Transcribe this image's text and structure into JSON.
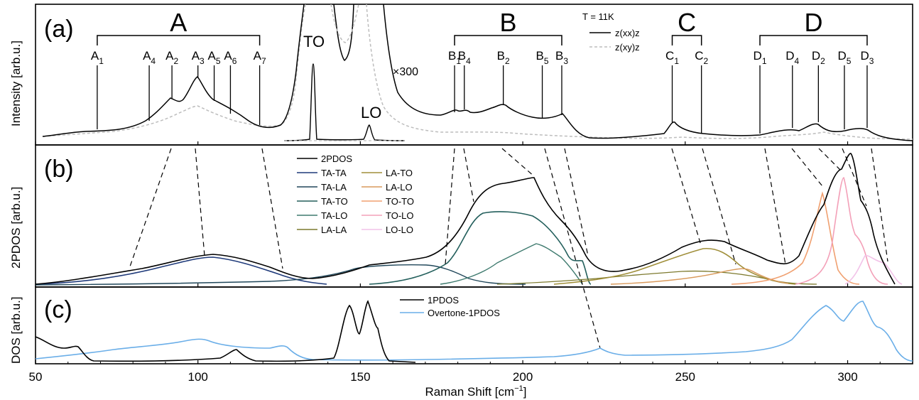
{
  "figure": {
    "xlabel": "Raman Shift [cm",
    "xlabel_sup": "−1",
    "xlabel_end": "]",
    "xlim": [
      50,
      320
    ],
    "xticks": [
      50,
      100,
      150,
      200,
      250,
      300
    ]
  },
  "colors": {
    "black": "#000000",
    "gray": "#bdbdbd",
    "TA-TA": "#1f3a7a",
    "TA-LA": "#20475a",
    "TA-TO": "#235f5c",
    "TA-LO": "#3e7a6e",
    "LA-LA": "#7d7a2e",
    "LA-TO": "#a08f3a",
    "LA-LO": "#d99a5c",
    "TO-TO": "#f0a070",
    "TO-LO": "#f3a0b8",
    "LO-LO": "#f2c2e8",
    "overtone": "#6aaee8",
    "dashed": "#000000"
  },
  "panel_a": {
    "label": "(a)",
    "ylabel": "Intensity [arb.u.]",
    "mult": "×300",
    "TO": "TO",
    "LO": "LO",
    "groups": [
      {
        "name": "A",
        "from": 69,
        "to": 119
      },
      {
        "name": "B",
        "from": 179,
        "to": 212
      },
      {
        "name": "C",
        "from": 246,
        "to": 255
      },
      {
        "name": "D",
        "from": 273,
        "to": 306
      }
    ],
    "peaks": [
      {
        "main": "A",
        "sub": "1",
        "x": 69
      },
      {
        "main": "A",
        "sub": "4",
        "x": 85
      },
      {
        "main": "A",
        "sub": "2",
        "x": 92
      },
      {
        "main": "A",
        "sub": "3",
        "x": 100
      },
      {
        "main": "A",
        "sub": "5",
        "x": 105
      },
      {
        "main": "A",
        "sub": "6",
        "x": 110
      },
      {
        "main": "A",
        "sub": "7",
        "x": 119
      },
      {
        "main": "B",
        "sub": "1",
        "x": 179
      },
      {
        "main": "B",
        "sub": "4",
        "x": 182
      },
      {
        "main": "B",
        "sub": "2",
        "x": 194
      },
      {
        "main": "B",
        "sub": "5",
        "x": 206
      },
      {
        "main": "B",
        "sub": "3",
        "x": 212
      },
      {
        "main": "C",
        "sub": "1",
        "x": 246
      },
      {
        "main": "C",
        "sub": "2",
        "x": 255
      },
      {
        "main": "D",
        "sub": "1",
        "x": 273
      },
      {
        "main": "D",
        "sub": "4",
        "x": 283
      },
      {
        "main": "D",
        "sub": "2",
        "x": 291
      },
      {
        "main": "D",
        "sub": "5",
        "x": 299
      },
      {
        "main": "D",
        "sub": "3",
        "x": 306
      }
    ],
    "legend": {
      "title": "T = 11K",
      "s1": "z(xx)z",
      "s2": "z(xy)z"
    }
  },
  "panel_b": {
    "label": "(b)",
    "ylabel": "2PDOS [arb.u.]",
    "legend_total": "2PDOS",
    "legend_left": [
      "TA-TA",
      "TA-LA",
      "TA-TO",
      "TA-LO",
      "LA-LA"
    ],
    "legend_right": [
      "LA-TO",
      "LA-LO",
      "TO-TO",
      "TO-LO",
      "LO-LO"
    ]
  },
  "panel_c": {
    "label": "(c)",
    "ylabel": "DOS [arb.u.]",
    "legend": [
      "1PDOS",
      "Overtone-1PDOS"
    ]
  },
  "chart_data": [
    {
      "type": "line",
      "panel": "a",
      "ylabel": "Intensity [arb.u.]",
      "xlim": [
        50,
        320
      ],
      "series": [
        {
          "name": "z(xx)z",
          "x": [
            50,
            55,
            60,
            65,
            69,
            75,
            80,
            85,
            88,
            92,
            95,
            98,
            100,
            102,
            105,
            110,
            115,
            119,
            122,
            125
          ],
          "y": [
            0.06,
            0.08,
            0.1,
            0.12,
            0.14,
            0.15,
            0.18,
            0.24,
            0.36,
            0.52,
            0.45,
            0.55,
            0.7,
            0.55,
            0.44,
            0.34,
            0.26,
            0.2,
            0.17,
            0.2
          ]
        },
        {
          "name": "z(xy)z",
          "x": [
            50,
            60,
            70,
            80,
            90,
            95,
            100,
            105,
            110,
            120,
            125
          ],
          "y": [
            0.04,
            0.05,
            0.06,
            0.08,
            0.14,
            0.2,
            0.26,
            0.2,
            0.14,
            0.1,
            0.1
          ]
        }
      ]
    },
    {
      "type": "line",
      "panel": "b",
      "ylabel": "2PDOS [arb.u.]",
      "xlim": [
        50,
        320
      ],
      "series": [
        {
          "name": "2PDOS",
          "x": [
            50,
            60,
            70,
            80,
            90,
            100,
            105,
            110,
            120,
            130,
            140,
            150,
            160,
            170,
            175,
            180,
            185,
            190,
            195,
            200,
            204,
            208,
            212,
            216,
            220,
            225,
            230,
            240,
            250,
            258,
            265,
            275,
            282,
            287,
            290,
            293,
            296,
            299,
            302,
            305,
            308,
            312
          ],
          "y": [
            0.02,
            0.04,
            0.08,
            0.13,
            0.18,
            0.24,
            0.26,
            0.24,
            0.14,
            0.06,
            0.1,
            0.14,
            0.17,
            0.22,
            0.33,
            0.6,
            0.78,
            0.85,
            0.86,
            0.88,
            0.89,
            0.72,
            0.5,
            0.36,
            0.28,
            0.1,
            0.1,
            0.15,
            0.32,
            0.39,
            0.33,
            0.16,
            0.18,
            0.6,
            0.92,
            0.86,
            0.97,
            1.0,
            0.82,
            0.62,
            0.25,
            0.05
          ]
        },
        {
          "name": "TA-TA",
          "x": [
            50,
            70,
            90,
            100,
            105,
            115,
            125,
            130
          ],
          "y": [
            0.02,
            0.06,
            0.16,
            0.22,
            0.24,
            0.18,
            0.06,
            0.0
          ]
        },
        {
          "name": "TA-TO",
          "x": [
            170,
            180,
            190,
            200,
            210,
            215,
            220
          ],
          "y": [
            0.0,
            0.45,
            0.64,
            0.62,
            0.52,
            0.3,
            0.0
          ]
        },
        {
          "name": "TA-LO",
          "x": [
            190,
            200,
            205,
            210,
            220
          ],
          "y": [
            0.1,
            0.24,
            0.36,
            0.3,
            0.0
          ]
        },
        {
          "name": "LA-TO",
          "x": [
            235,
            250,
            257,
            265,
            275
          ],
          "y": [
            0.04,
            0.2,
            0.32,
            0.18,
            0.02
          ]
        },
        {
          "name": "TO-TO",
          "x": [
            280,
            287,
            292,
            296,
            300
          ],
          "y": [
            0.02,
            0.3,
            0.8,
            0.3,
            0.02
          ]
        },
        {
          "name": "TO-LO",
          "x": [
            290,
            296,
            299,
            302,
            306
          ],
          "y": [
            0.02,
            0.4,
            0.95,
            0.4,
            0.02
          ]
        },
        {
          "name": "LO-LO",
          "x": [
            300,
            305,
            308,
            312,
            315
          ],
          "y": [
            0.0,
            0.2,
            0.25,
            0.2,
            0.0
          ]
        }
      ]
    },
    {
      "type": "line",
      "panel": "c",
      "ylabel": "DOS [arb.u.]",
      "xlim": [
        50,
        320
      ],
      "series": [
        {
          "name": "1PDOS",
          "x": [
            50,
            55,
            60,
            63,
            66,
            70,
            80,
            100,
            110,
            112,
            115,
            130,
            140,
            145,
            147,
            149,
            151,
            152,
            154,
            156,
            158,
            160
          ],
          "y": [
            0.28,
            0.18,
            0.12,
            0.16,
            0.08,
            0.01,
            0.0,
            0.01,
            0.04,
            0.1,
            0.03,
            0.02,
            0.08,
            0.55,
            0.85,
            0.6,
            0.88,
            0.72,
            0.4,
            0.3,
            0.05,
            0.0
          ]
        },
        {
          "name": "Overtone-1PDOS",
          "x": [
            50,
            60,
            70,
            80,
            90,
            100,
            102,
            110,
            120,
            125,
            127,
            130,
            140,
            160,
            180,
            200,
            220,
            224,
            226,
            240,
            260,
            280,
            288,
            293,
            297,
            300,
            303,
            305,
            308,
            311,
            314,
            318
          ],
          "y": [
            0.02,
            0.04,
            0.08,
            0.16,
            0.2,
            0.26,
            0.28,
            0.2,
            0.16,
            0.2,
            0.14,
            0.04,
            0.02,
            0.02,
            0.03,
            0.04,
            0.06,
            0.12,
            0.08,
            0.06,
            0.1,
            0.2,
            0.55,
            0.85,
            0.7,
            0.75,
            0.9,
            0.8,
            0.55,
            0.5,
            0.1,
            0.0
          ]
        }
      ]
    }
  ]
}
